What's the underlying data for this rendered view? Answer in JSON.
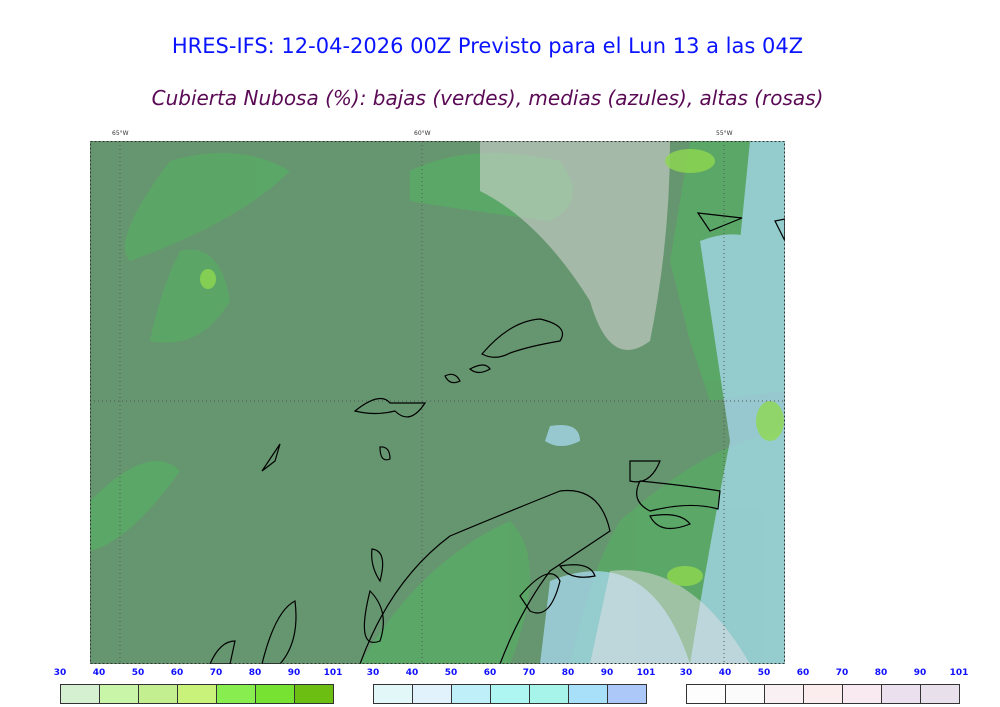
{
  "title": "HRES-IFS: 12-04-2026 00Z Previsto para el Lun 13 a las 04Z",
  "subtitle": "Cubierta Nubosa (%): bajas (verdes), medias (azules), altas (rosas)",
  "map": {
    "gridlines": [
      "65°W",
      "60°W",
      "55°W"
    ],
    "background_color": "#66966f"
  },
  "colorbars": [
    {
      "name": "bajas",
      "ticks": [
        "30",
        "40",
        "50",
        "60",
        "70",
        "80",
        "90",
        "101"
      ],
      "colors": [
        "#d4f0d0",
        "#c8f5a8",
        "#c4ef90",
        "#c8f27a",
        "#88ee50",
        "#78e232",
        "#6cbf12"
      ]
    },
    {
      "name": "medias",
      "ticks": [
        "30",
        "40",
        "50",
        "60",
        "70",
        "80",
        "90",
        "101"
      ],
      "colors": [
        "#e2f8f8",
        "#e2f2fc",
        "#bff0fa",
        "#aef6f2",
        "#a6f4ea",
        "#a8e0fa",
        "#acc8f8"
      ]
    },
    {
      "name": "altas",
      "ticks": [
        "30",
        "40",
        "50",
        "60",
        "70",
        "80",
        "90",
        "101"
      ],
      "colors": [
        "#fdfdfd",
        "#fbfbfb",
        "#f8f0f2",
        "#fbeced",
        "#f8eaf0",
        "#ebe0ee",
        "#e8e0ea"
      ]
    }
  ]
}
